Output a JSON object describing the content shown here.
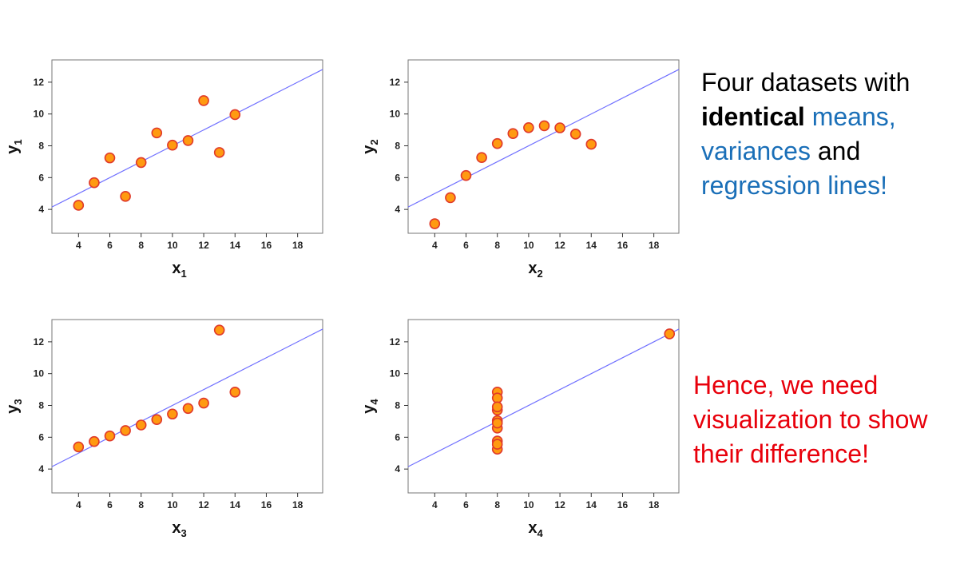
{
  "chart_data": [
    {
      "type": "scatter",
      "xlabel": "x",
      "xlabel_sub": "1",
      "ylabel": "y",
      "ylabel_sub": "1",
      "xlim": [
        2.3,
        19.6
      ],
      "ylim": [
        2.5,
        13.4
      ],
      "xticks": [
        4,
        6,
        8,
        10,
        12,
        14,
        16,
        18
      ],
      "yticks": [
        4,
        6,
        8,
        10,
        12
      ],
      "x": [
        10,
        8,
        13,
        9,
        11,
        14,
        6,
        4,
        12,
        7,
        5
      ],
      "y": [
        8.04,
        6.95,
        7.58,
        8.81,
        8.33,
        9.96,
        7.24,
        4.26,
        10.84,
        4.82,
        5.68
      ],
      "regression": {
        "intercept": 3.0,
        "slope": 0.5
      }
    },
    {
      "type": "scatter",
      "xlabel": "x",
      "xlabel_sub": "2",
      "ylabel": "y",
      "ylabel_sub": "2",
      "xlim": [
        2.3,
        19.6
      ],
      "ylim": [
        2.5,
        13.4
      ],
      "xticks": [
        4,
        6,
        8,
        10,
        12,
        14,
        16,
        18
      ],
      "yticks": [
        4,
        6,
        8,
        10,
        12
      ],
      "x": [
        10,
        8,
        13,
        9,
        11,
        14,
        6,
        4,
        12,
        7,
        5
      ],
      "y": [
        9.14,
        8.14,
        8.74,
        8.77,
        9.26,
        8.1,
        6.13,
        3.1,
        9.13,
        7.26,
        4.74
      ],
      "regression": {
        "intercept": 3.0,
        "slope": 0.5
      }
    },
    {
      "type": "scatter",
      "xlabel": "x",
      "xlabel_sub": "3",
      "ylabel": "y",
      "ylabel_sub": "3",
      "xlim": [
        2.3,
        19.6
      ],
      "ylim": [
        2.5,
        13.4
      ],
      "xticks": [
        4,
        6,
        8,
        10,
        12,
        14,
        16,
        18
      ],
      "yticks": [
        4,
        6,
        8,
        10,
        12
      ],
      "x": [
        10,
        8,
        13,
        9,
        11,
        14,
        6,
        4,
        12,
        7,
        5
      ],
      "y": [
        7.46,
        6.77,
        12.74,
        7.11,
        7.81,
        8.84,
        6.08,
        5.39,
        8.15,
        6.42,
        5.73
      ],
      "regression": {
        "intercept": 3.0,
        "slope": 0.5
      }
    },
    {
      "type": "scatter",
      "xlabel": "x",
      "xlabel_sub": "4",
      "ylabel": "y",
      "ylabel_sub": "4",
      "xlim": [
        2.3,
        19.6
      ],
      "ylim": [
        2.5,
        13.4
      ],
      "xticks": [
        4,
        6,
        8,
        10,
        12,
        14,
        16,
        18
      ],
      "yticks": [
        4,
        6,
        8,
        10,
        12
      ],
      "x": [
        8,
        8,
        8,
        8,
        8,
        8,
        8,
        19,
        8,
        8,
        8
      ],
      "y": [
        6.58,
        5.76,
        7.71,
        8.84,
        8.47,
        7.04,
        5.25,
        12.5,
        5.56,
        7.91,
        6.89
      ],
      "regression": {
        "intercept": 3.0,
        "slope": 0.5
      }
    }
  ],
  "notes": {
    "line1_a": "Four datasets with",
    "line2_bold": "identical",
    "line2_blue": "means,",
    "line3_blue": "variances",
    "line3_b": "and",
    "line4_blue": "regression lines!",
    "line5": "Hence, we need",
    "line6": "visualization to show",
    "line7": "their difference!"
  },
  "colors": {
    "point_fill": "#ff9a10",
    "point_stroke": "#e03a2a",
    "regression_line": "#7070ff",
    "accent_blue": "#1a6fb8",
    "accent_red": "#e8000b"
  }
}
